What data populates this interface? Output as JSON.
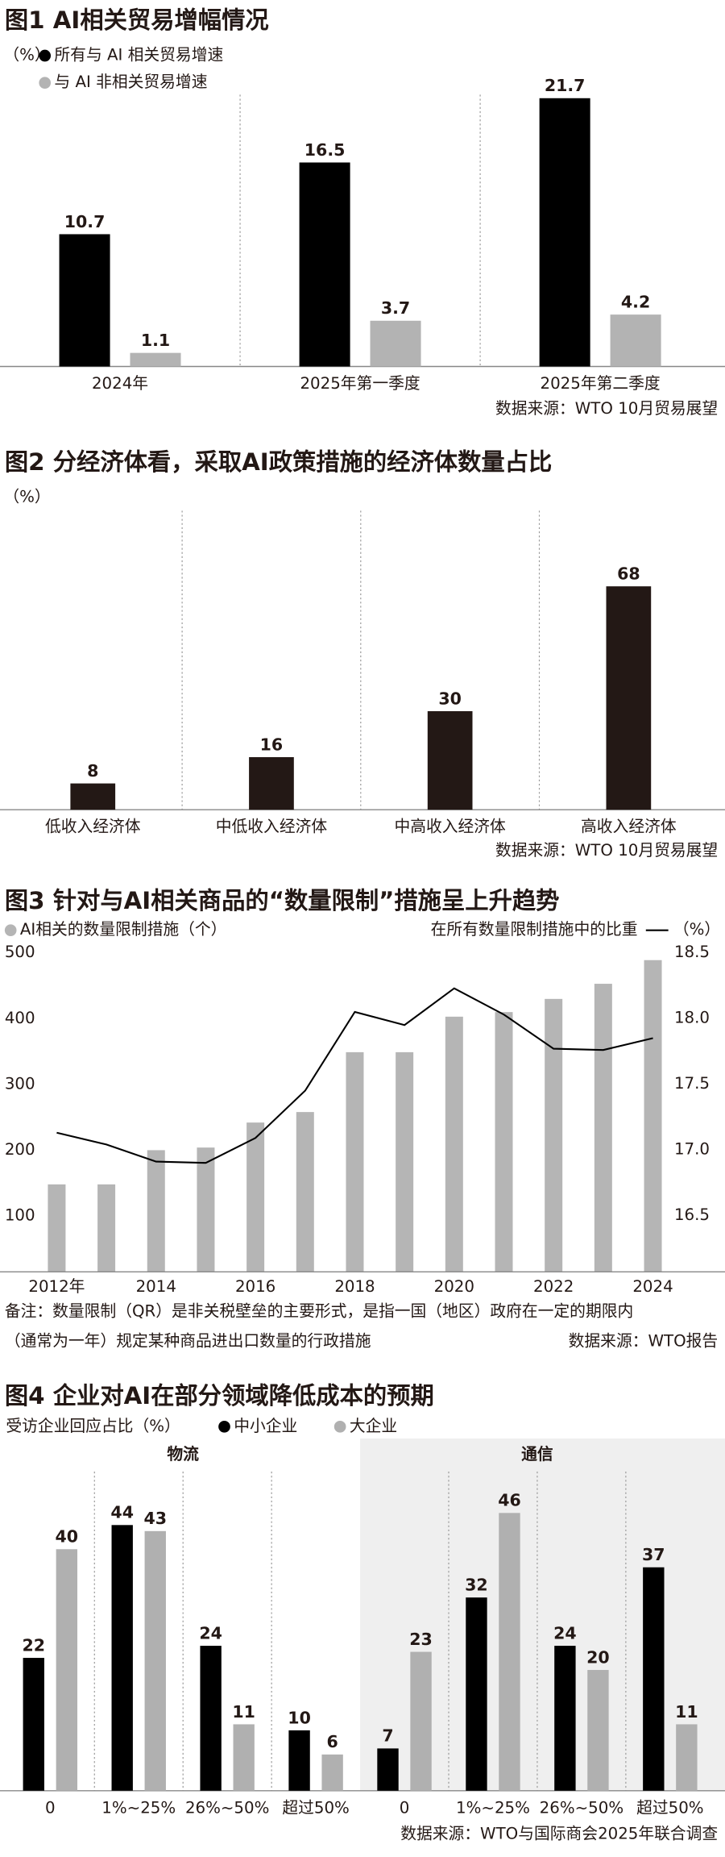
{
  "chart_data": [
    {
      "type": "bar",
      "title": "图1 AI相关贸易增幅情况",
      "unit": "（%）",
      "categories": [
        "2024年",
        "2025年第一季度",
        "2025年第二季度"
      ],
      "series": [
        {
          "name": "所有与 AI 相关贸易增速",
          "color": "#000000",
          "values": [
            10.7,
            16.5,
            21.7
          ]
        },
        {
          "name": "与 AI 非相关贸易增速",
          "color": "#b3b3b3",
          "values": [
            1.1,
            3.7,
            4.2
          ]
        }
      ],
      "source": "数据来源：WTO 10月贸易展望"
    },
    {
      "type": "bar",
      "title": "图2 分经济体看，采取AI政策措施的经济体数量占比",
      "unit": "（%）",
      "categories": [
        "低收入经济体",
        "中低收入经济体",
        "中高收入经济体",
        "高收入经济体"
      ],
      "values": [
        8,
        16,
        30,
        68
      ],
      "color": "#231815",
      "source": "数据来源：WTO 10月贸易展望"
    },
    {
      "type": "combo",
      "title": "图3 针对与AI相关商品的“数量限制”措施呈上升趋势",
      "categories": [
        "2012年",
        null,
        "2014",
        null,
        "2016",
        null,
        "2018",
        null,
        "2020",
        null,
        "2022",
        null,
        "2024"
      ],
      "series": [
        {
          "name": "AI相关的数量限制措施（个）",
          "color": "#b5b5b5",
          "values": [
            148,
            148,
            200,
            204,
            242,
            258,
            349,
            349,
            403,
            410,
            430,
            453,
            489
          ]
        },
        {
          "name": "在所有数量限制措施中的比重",
          "color": "#000000",
          "axis": "y2",
          "values": [
            17.13,
            17.04,
            16.91,
            16.9,
            17.09,
            17.45,
            18.05,
            17.95,
            18.23,
            18.03,
            17.77,
            17.76,
            17.85
          ]
        }
      ],
      "ylim": [
        15,
        520
      ],
      "yticks": [
        100,
        200,
        300,
        400,
        500
      ],
      "y2lim": [
        16.07,
        18.6
      ],
      "y2ticks": [
        18.5,
        {
          "value": 18,
          "label": "18.0"
        },
        17.5,
        {
          "value": 17,
          "label": "17.0"
        },
        16.5
      ],
      "y2unit": "（%）",
      "note": [
        "备注：数量限制（QR）是非关税壁垒的主要形式，是指一国（地区）政府在一定的期限内",
        "（通常为一年）规定某种商品进出口数量的行政措施"
      ],
      "source": "数据来源：WTO报告"
    },
    {
      "type": "bar",
      "title": "图4 企业对AI在部分领域降低成本的预期",
      "unit": "受访企业回应占比（%）",
      "panels": [
        "物流",
        "通信"
      ],
      "categories": [
        "0",
        "1%~25%",
        "26%~50%",
        "超过50%",
        "0",
        "1%~25%",
        "26%~50%",
        "超过50%"
      ],
      "series": [
        {
          "name": "中小企业",
          "color": "#000000",
          "values": [
            22,
            44,
            24,
            10,
            7,
            32,
            24,
            37
          ]
        },
        {
          "name": "大企业",
          "color": "#b0b0b0",
          "values": [
            40,
            43,
            11,
            6,
            23,
            46,
            20,
            11
          ]
        }
      ],
      "source": "数据来源：WTO与国际商会2025年联合调查"
    }
  ]
}
